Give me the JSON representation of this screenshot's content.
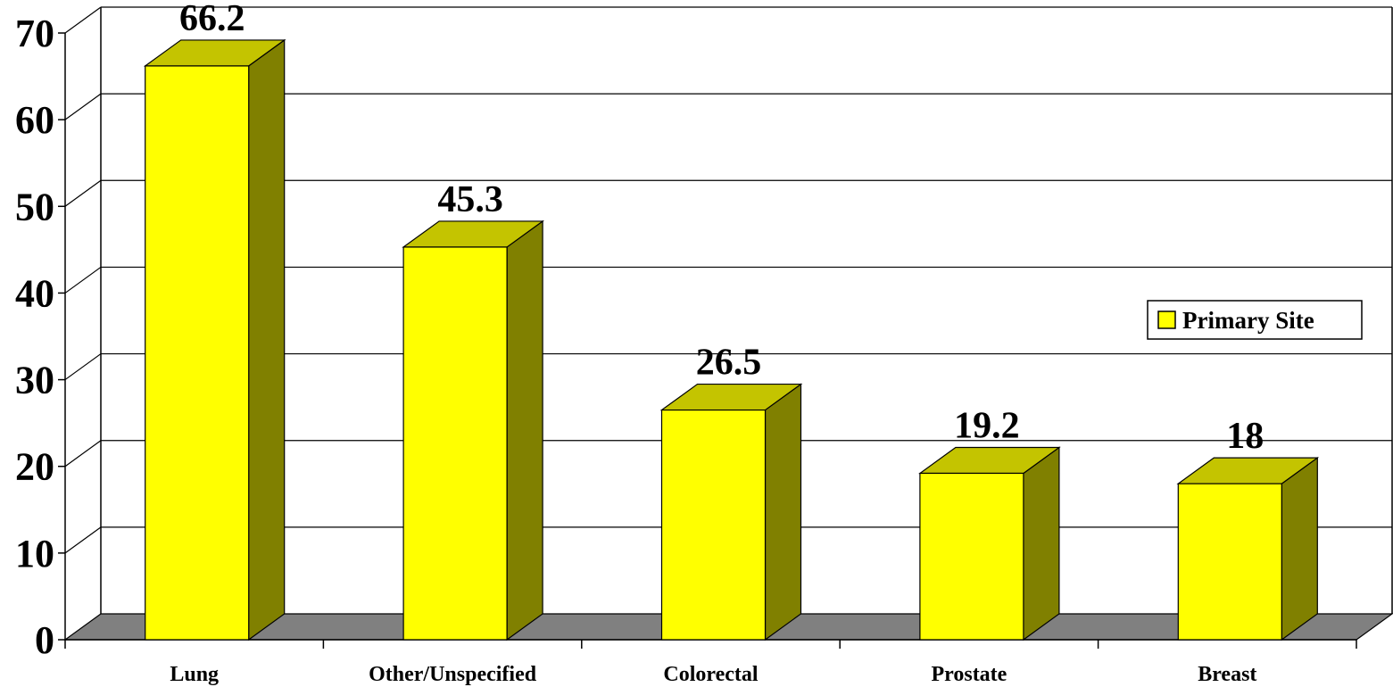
{
  "chart_data": {
    "type": "bar",
    "style": "3d-column",
    "categories": [
      "Lung",
      "Other/Unspecified",
      "Colorectal",
      "Prostate",
      "Breast"
    ],
    "series": [
      {
        "name": "Primary Site",
        "values": [
          66.2,
          45.3,
          26.5,
          19.2,
          18
        ]
      }
    ],
    "data_labels": [
      "66.2",
      "45.3",
      "26.5",
      "19.2",
      "18"
    ],
    "y_ticks": [
      "0",
      "10",
      "20",
      "30",
      "40",
      "50",
      "60",
      "70"
    ],
    "ylim": [
      0,
      70
    ],
    "grid": true,
    "legend_position": "right",
    "colors": {
      "bar_front": "#ffff00",
      "bar_top": "#c4c400",
      "bar_side": "#808000",
      "floor": "#808080",
      "gridline": "#000000"
    }
  }
}
